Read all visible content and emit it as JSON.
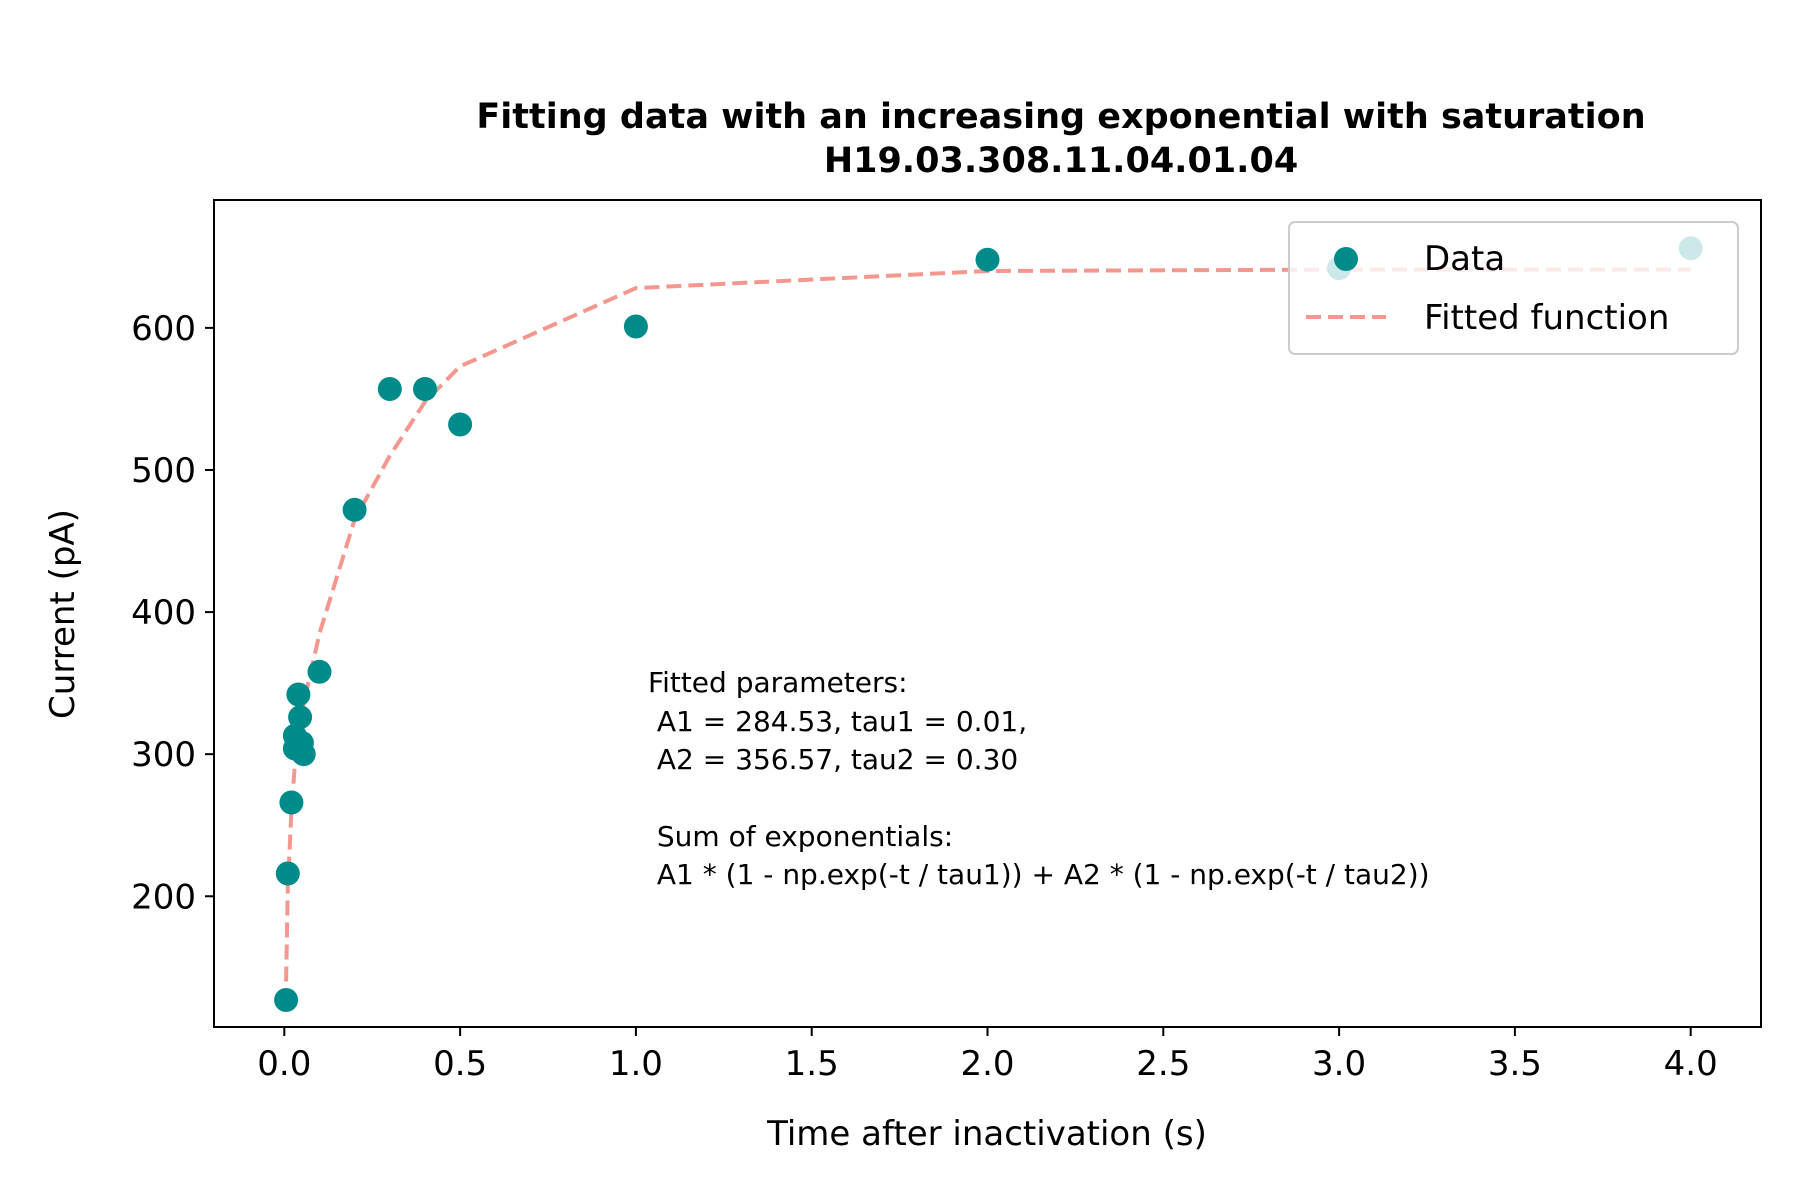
{
  "chart_data": {
    "type": "scatter",
    "title": "Fitting data with an increasing exponential with saturation",
    "subtitle": "H19.03.308.11.04.01.04",
    "xlabel": "Time after inactivation (s)",
    "ylabel": "Current (pA)",
    "xlim": [
      -0.2,
      4.2
    ],
    "ylim": [
      108,
      690
    ],
    "xticks": [
      0.0,
      0.5,
      1.0,
      1.5,
      2.0,
      2.5,
      3.0,
      3.5,
      4.0
    ],
    "xtick_labels": [
      "0.0",
      "0.5",
      "1.0",
      "1.5",
      "2.0",
      "2.5",
      "3.0",
      "3.5",
      "4.0"
    ],
    "yticks": [
      200,
      300,
      400,
      500,
      600
    ],
    "ytick_labels": [
      "200",
      "300",
      "400",
      "500",
      "600"
    ],
    "grid": false,
    "legend_position": "top-right",
    "colors": {
      "data": "#008b8b",
      "fit": "#f4978e"
    },
    "series": [
      {
        "name": "Data",
        "kind": "scatter",
        "x": [
          0.005,
          0.01,
          0.02,
          0.03,
          0.03,
          0.04,
          0.045,
          0.05,
          0.055,
          0.1,
          0.2,
          0.3,
          0.4,
          0.5,
          1.0,
          2.0,
          3.0,
          4.0
        ],
        "y": [
          127,
          216,
          266,
          304,
          313,
          342,
          326,
          308,
          300,
          358,
          472,
          557,
          557,
          532,
          601,
          648,
          642,
          656
        ]
      },
      {
        "name": "Fitted function",
        "kind": "line",
        "style": "dashed",
        "x": [
          0.005,
          0.01,
          0.02,
          0.03,
          0.04,
          0.05,
          0.1,
          0.2,
          0.3,
          0.4,
          0.5,
          1.0,
          2.0,
          3.0,
          4.0
        ],
        "y": [
          140,
          206,
          260,
          293,
          315,
          330,
          385,
          465,
          510,
          548,
          573,
          628,
          640,
          641,
          641
        ]
      }
    ],
    "annotation_lines": [
      "Fitted parameters:",
      " A1 = 284.53, tau1 = 0.01,",
      " A2 = 356.57, tau2 = 0.30",
      "",
      " Sum of exponentials:",
      " A1 * (1 - np.exp(-t / tau1)) + A2 * (1 - np.exp(-t / tau2))"
    ]
  }
}
